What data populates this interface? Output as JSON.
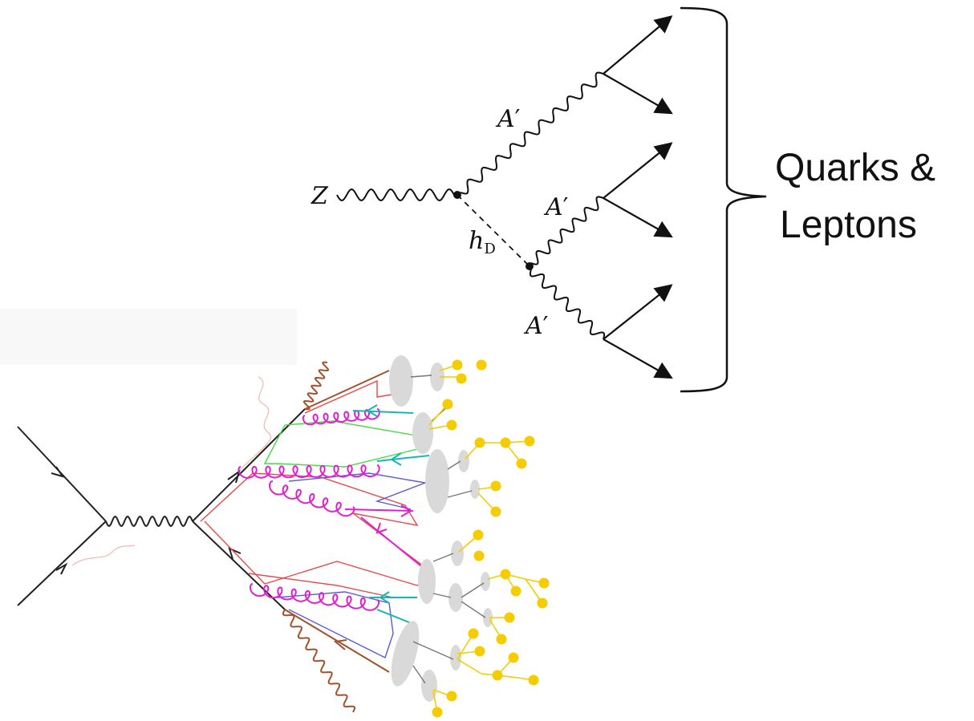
{
  "feynman_diagram": {
    "labels": {
      "z_boson": "Z",
      "dark_higgs_main": "h",
      "dark_higgs_sub": "D",
      "dark_photon": "A",
      "prime": "′"
    },
    "bracket_caption_line1": "Quarks &",
    "bracket_caption_line2": "Leptons"
  },
  "shower_diagram": {
    "colors": {
      "fermion": "#222222",
      "photon_brown": "#a0522d",
      "gluon_magenta": "#e020d0",
      "color_line_red": "#e84a4a",
      "color_line_green": "#44dd44",
      "color_line_blue": "#5a5adc",
      "cyan_arrow": "#19b5b5",
      "hadron_gray": "#d8d8d8",
      "final_state_yellow": "#f5cc00"
    }
  }
}
